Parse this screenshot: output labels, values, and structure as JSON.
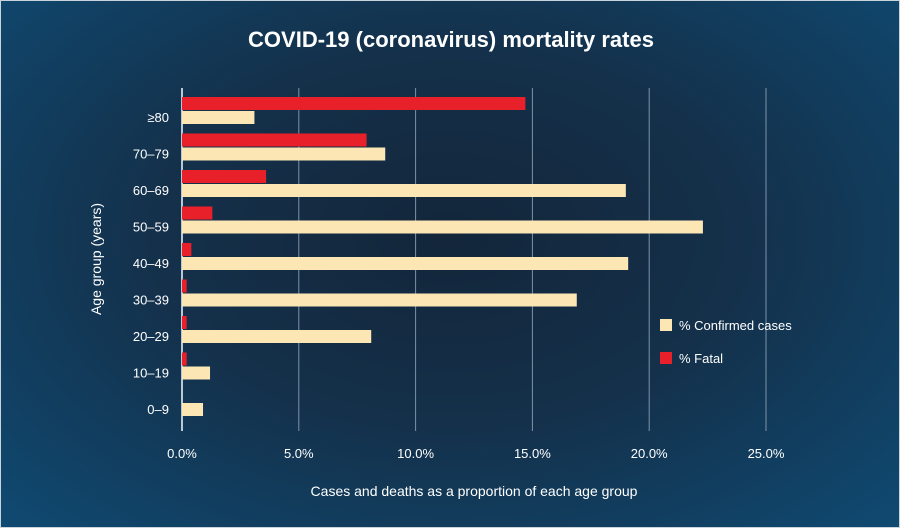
{
  "chart_data": {
    "type": "bar",
    "orientation": "horizontal",
    "title": "COVID-19 (coronavirus) mortality rates",
    "xlabel": "Cases and deaths as a proportion of each age group",
    "ylabel": "Age group (years)",
    "categories": [
      "≥80",
      "70–79",
      "60–69",
      "50–59",
      "40–49",
      "30–39",
      "20–29",
      "10–19",
      "0–9"
    ],
    "series": [
      {
        "name": "% Fatal",
        "color": "#e8202a",
        "values": [
          14.7,
          7.9,
          3.6,
          1.3,
          0.4,
          0.2,
          0.2,
          0.2,
          0
        ]
      },
      {
        "name": "% Confirmed cases",
        "color": "#fbe6b4",
        "values": [
          3.1,
          8.7,
          19.0,
          22.3,
          19.1,
          16.9,
          8.1,
          1.2,
          0.9
        ]
      }
    ],
    "xlim": [
      0,
      25
    ],
    "xticks": [
      "0.0%",
      "5.0%",
      "10.0%",
      "15.0%",
      "20.0%",
      "25.0%"
    ],
    "grid": true,
    "legend_position": "right",
    "legend": [
      {
        "label": "% Confirmed cases",
        "color": "#fbe6b4"
      },
      {
        "label": "% Fatal",
        "color": "#e8202a"
      }
    ]
  }
}
